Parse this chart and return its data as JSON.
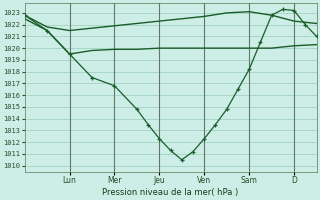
{
  "background_color": "#cceee6",
  "grid_color": "#99ccbb",
  "line_color": "#1a5c2a",
  "title": "Pression niveau de la mer( hPa )",
  "ylim": [
    1009.5,
    1023.8
  ],
  "yticks": [
    1010,
    1011,
    1012,
    1013,
    1014,
    1015,
    1016,
    1017,
    1018,
    1019,
    1020,
    1021,
    1022,
    1023
  ],
  "day_labels": [
    "Lun",
    "Mer",
    "Jeu",
    "Ven",
    "Sam",
    "D"
  ],
  "day_positions": [
    1,
    2,
    3,
    4,
    5,
    6
  ],
  "xlim": [
    0,
    6.5
  ],
  "series1_x": [
    0.0,
    0.5,
    1.0,
    1.5,
    2.0,
    2.5,
    3.0,
    3.5,
    4.0,
    4.5,
    5.0,
    5.5,
    6.0,
    6.5
  ],
  "series1_y": [
    1022.8,
    1021.8,
    1021.5,
    1021.7,
    1021.9,
    1022.1,
    1022.3,
    1022.5,
    1022.7,
    1023.0,
    1023.1,
    1022.8,
    1022.3,
    1022.1
  ],
  "series2_x": [
    0.0,
    0.5,
    1.0,
    1.5,
    2.0,
    2.5,
    3.0,
    3.5,
    4.0,
    4.5,
    5.0,
    5.5,
    6.0,
    6.5
  ],
  "series2_y": [
    1022.5,
    1021.5,
    1019.5,
    1019.8,
    1019.9,
    1019.9,
    1020.0,
    1020.0,
    1020.0,
    1020.0,
    1020.0,
    1020.0,
    1020.2,
    1020.3
  ],
  "series3_x": [
    0.0,
    0.5,
    1.0,
    1.5,
    2.0,
    2.5,
    2.75,
    3.0,
    3.25,
    3.5,
    3.75,
    4.0,
    4.25,
    4.5,
    4.75,
    5.0,
    5.25,
    5.5,
    5.75,
    6.0,
    6.25,
    6.5
  ],
  "series3_y": [
    1022.8,
    1021.5,
    1019.5,
    1017.5,
    1016.8,
    1014.8,
    1013.5,
    1012.3,
    1011.3,
    1010.5,
    1011.2,
    1012.3,
    1013.5,
    1014.8,
    1016.5,
    1018.2,
    1020.5,
    1022.8,
    1023.3,
    1023.2,
    1022.0,
    1021.0
  ]
}
